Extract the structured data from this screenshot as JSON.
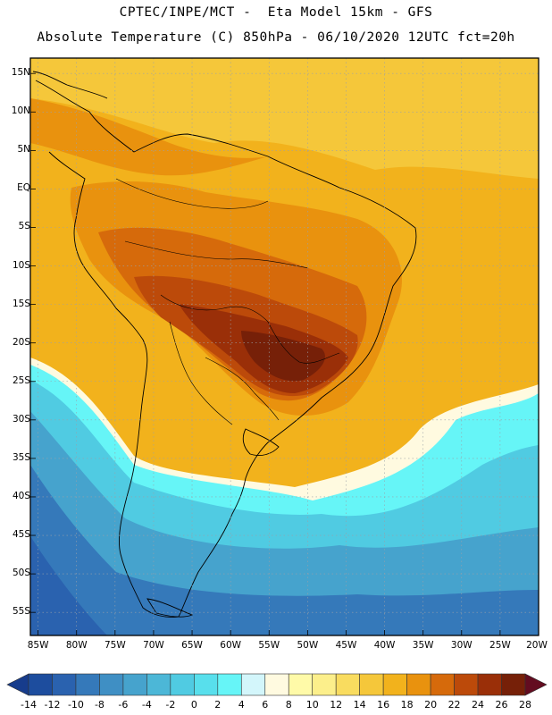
{
  "title": {
    "line1": "CPTEC/INPE/MCT -  Eta Model 15km - GFS",
    "line2": "Absolute Temperature (C) 850hPa - 06/10/2020 12UTC fct=20h"
  },
  "map": {
    "lat_labels": [
      "15N",
      "10N",
      "5N",
      "EQ",
      "5S",
      "10S",
      "15S",
      "20S",
      "25S",
      "30S",
      "35S",
      "40S",
      "45S",
      "50S",
      "55S"
    ],
    "lon_labels": [
      "85W",
      "80W",
      "75W",
      "70W",
      "65W",
      "60W",
      "55W",
      "50W",
      "45W",
      "40W",
      "35W",
      "30W",
      "25W",
      "20W"
    ],
    "lat_values": [
      15,
      10,
      5,
      0,
      -5,
      -10,
      -15,
      -20,
      -25,
      -30,
      -35,
      -40,
      -45,
      -50,
      -55
    ],
    "lon_values": [
      -85,
      -80,
      -75,
      -70,
      -65,
      -60,
      -55,
      -50,
      -45,
      -40,
      -35,
      -30,
      -25,
      -20
    ],
    "lat_range": [
      -58,
      17
    ],
    "lon_range": [
      -86,
      -20
    ]
  },
  "colorbar": {
    "labels": [
      "-14",
      "-12",
      "-10",
      "-8",
      "-6",
      "-4",
      "-2",
      "0",
      "2",
      "4",
      "6",
      "8",
      "10",
      "12",
      "14",
      "16",
      "18",
      "20",
      "22",
      "24",
      "26",
      "28"
    ],
    "colors": [
      "#173c8c",
      "#1d4d9e",
      "#2a62af",
      "#3579ba",
      "#3f8fc4",
      "#46a3cd",
      "#4cb7d7",
      "#50cbe2",
      "#58dfec",
      "#66f5f7",
      "#d3f6fb",
      "#fffae0",
      "#fffaa8",
      "#fcef8b",
      "#f9dc5f",
      "#f5c73a",
      "#f2b21c",
      "#e9920e",
      "#d66a0b",
      "#bc4a0a",
      "#9a2f08",
      "#762008",
      "#630c20"
    ]
  }
}
